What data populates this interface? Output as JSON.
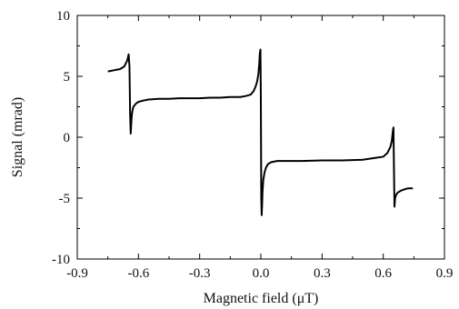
{
  "chart_data": {
    "type": "line",
    "title": "",
    "xlabel": "Magnetic field (μT)",
    "ylabel": "Signal (mrad)",
    "xlim": [
      -0.9,
      0.9
    ],
    "ylim": [
      -10,
      10
    ],
    "x_ticks": [
      "-0.9",
      "-0.6",
      "-0.3",
      "0.0",
      "0.3",
      "0.6",
      "0.9"
    ],
    "y_ticks": [
      "10",
      "5",
      "0",
      "-5",
      "-10"
    ],
    "grid": false,
    "legend": "none",
    "series_color": "#000000",
    "series": [
      {
        "x": [
          -0.75,
          -0.72,
          -0.69,
          -0.67,
          -0.655,
          -0.648,
          -0.644,
          -0.641,
          -0.638,
          -0.636,
          -0.634,
          -0.632,
          -0.629,
          -0.625,
          -0.62,
          -0.61,
          -0.6,
          -0.58,
          -0.55,
          -0.5,
          -0.45,
          -0.4,
          -0.35,
          -0.3,
          -0.25,
          -0.2,
          -0.15,
          -0.1,
          -0.07,
          -0.05,
          -0.035,
          -0.025,
          -0.018,
          -0.012,
          -0.008,
          -0.005,
          -0.002,
          0.0,
          0.002,
          0.004,
          0.006,
          0.008,
          0.012,
          0.018,
          0.025,
          0.035,
          0.05,
          0.08,
          0.12,
          0.2,
          0.3,
          0.4,
          0.5,
          0.56,
          0.6,
          0.62,
          0.635,
          0.642,
          0.647,
          0.65,
          0.652,
          0.655,
          0.658,
          0.662,
          0.668,
          0.675,
          0.685,
          0.7,
          0.72,
          0.745
        ],
        "y": [
          5.4,
          5.5,
          5.6,
          5.8,
          6.3,
          6.8,
          5.8,
          2.0,
          0.3,
          0.9,
          1.5,
          1.9,
          2.2,
          2.5,
          2.6,
          2.8,
          2.9,
          3.0,
          3.1,
          3.15,
          3.15,
          3.2,
          3.2,
          3.2,
          3.25,
          3.25,
          3.3,
          3.3,
          3.4,
          3.5,
          3.8,
          4.2,
          4.6,
          5.2,
          6.0,
          6.9,
          7.2,
          3.0,
          -5.0,
          -6.4,
          -5.6,
          -4.5,
          -3.5,
          -2.9,
          -2.5,
          -2.2,
          -2.05,
          -1.95,
          -1.95,
          -1.95,
          -1.9,
          -1.9,
          -1.85,
          -1.7,
          -1.6,
          -1.3,
          -0.8,
          -0.3,
          0.5,
          0.8,
          -2.0,
          -5.7,
          -5.0,
          -4.8,
          -4.6,
          -4.5,
          -4.4,
          -4.3,
          -4.2,
          -4.2
        ]
      }
    ]
  }
}
